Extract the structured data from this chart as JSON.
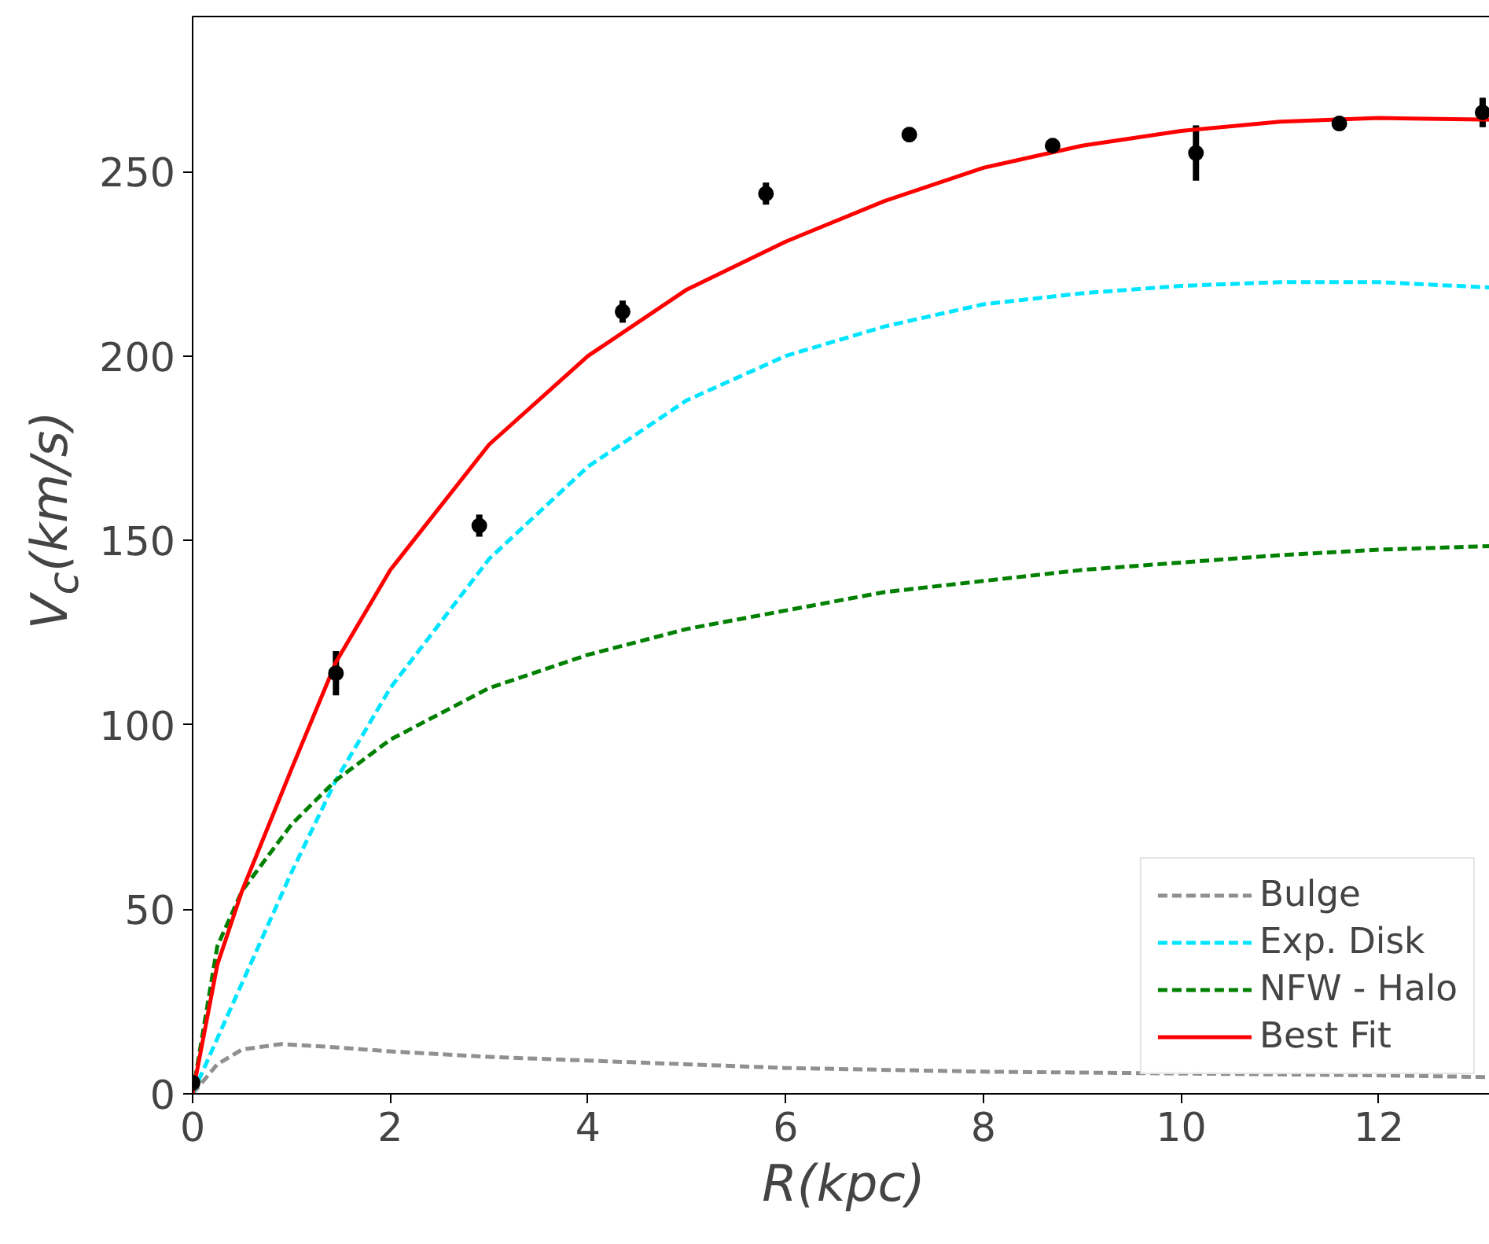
{
  "chart_data": {
    "type": "line",
    "xlabel": "R(kpc)",
    "ylabel": "V$_{c}$(km/s)",
    "xlim": [
      0,
      13.17
    ],
    "ylim": [
      0,
      292
    ],
    "xticks": [
      0,
      2,
      4,
      6,
      8,
      10,
      12
    ],
    "yticks": [
      0,
      50,
      100,
      150,
      200,
      250
    ],
    "grid": false,
    "legend": "bottom right",
    "series": [
      {
        "type": "scatter",
        "marker": "circle",
        "color": "#000000",
        "x": [
          0,
          1.45,
          2.9,
          4.35,
          5.8,
          7.25,
          8.7,
          10.15,
          11.6,
          13.05
        ],
        "values": [
          3,
          114,
          154,
          212,
          244,
          260,
          257,
          255,
          263,
          266
        ],
        "errors": [
          2,
          6,
          3,
          3,
          3,
          2,
          2,
          7.5,
          2,
          4
        ]
      },
      {
        "name": "Bulge",
        "color": "#909090",
        "line_style": "dashed",
        "x": [
          0,
          0.25,
          0.5,
          0.9,
          1.5,
          2,
          3,
          4,
          5,
          6,
          8,
          10,
          12,
          13.17
        ],
        "values": [
          0,
          8,
          12,
          13.5,
          12.5,
          11.5,
          10,
          9,
          8,
          7,
          6,
          5.5,
          5,
          4.5
        ]
      },
      {
        "name": "Exp. Disk",
        "color": "#00e5ff",
        "line_style": "dashed",
        "x": [
          0,
          0.5,
          1,
          1.45,
          2,
          3,
          4,
          5,
          6,
          7,
          8,
          9,
          10,
          11,
          12,
          13.17
        ],
        "values": [
          0,
          30,
          60,
          85,
          110,
          145,
          170,
          188,
          200,
          208,
          214,
          217,
          219,
          220,
          220,
          218.5
        ]
      },
      {
        "name": "NFW - Halo",
        "color": "#008000",
        "line_style": "dashed",
        "x": [
          0,
          0.25,
          0.5,
          1,
          1.45,
          2,
          3,
          4,
          5,
          6,
          7,
          8,
          9,
          10,
          11,
          12,
          13.17
        ],
        "values": [
          0,
          40,
          55,
          73,
          85,
          96,
          110,
          119,
          126,
          131,
          136,
          139,
          142,
          144,
          146,
          147.5,
          148.5
        ]
      },
      {
        "name": "Best Fit",
        "color": "#ff0000",
        "line_style": "solid",
        "x": [
          0,
          0.25,
          0.5,
          1,
          1.45,
          2,
          3,
          4,
          5,
          6,
          7,
          8,
          9,
          10,
          11,
          12,
          13.17
        ],
        "values": [
          0,
          35,
          55,
          88,
          117,
          142,
          176,
          200,
          218,
          231,
          242,
          251,
          257,
          261,
          263.5,
          264.5,
          264
        ]
      }
    ]
  }
}
